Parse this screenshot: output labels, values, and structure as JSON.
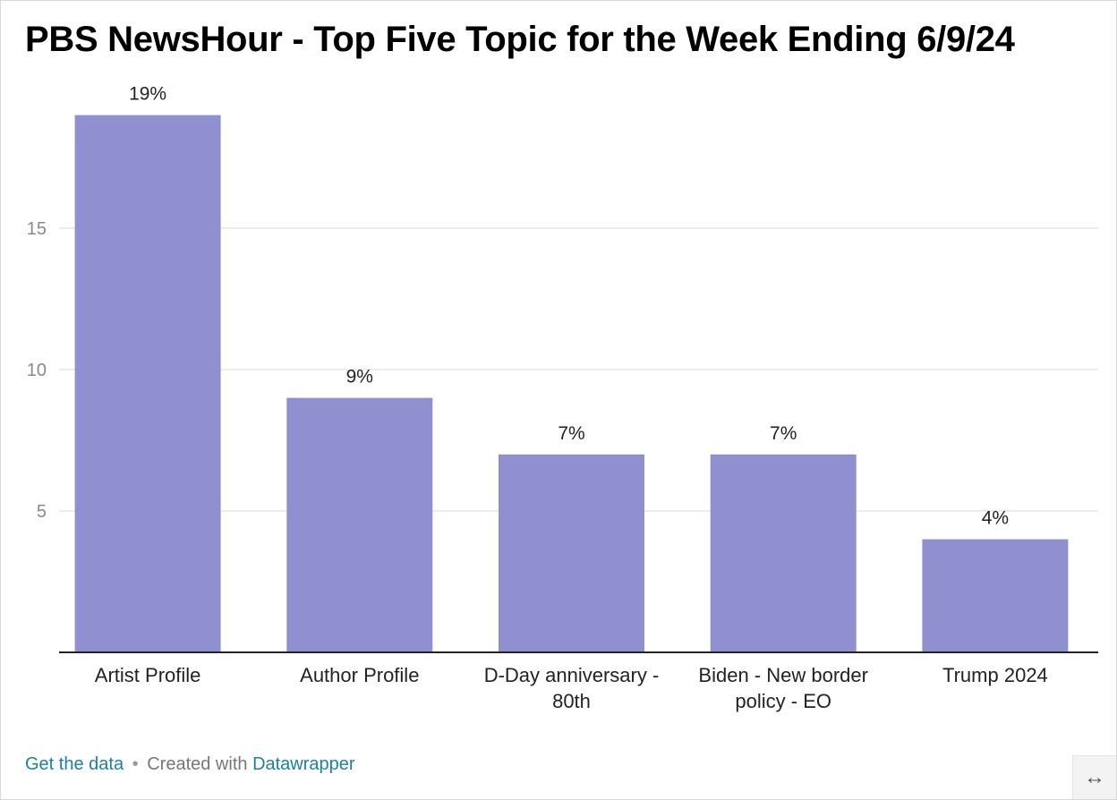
{
  "title": "PBS NewsHour - Top Five Topic for the Week Ending 6/9/24",
  "footer": {
    "get_data": "Get the data",
    "separator": "•",
    "created_with": "Created with",
    "tool": "Datawrapper"
  },
  "expand_icon": "↔",
  "colors": {
    "bar": "#9090d0",
    "grid": "#e6e6e6",
    "axis": "#222222",
    "link": "#1d81a2"
  },
  "chart_data": {
    "type": "bar",
    "categories": [
      [
        "Artist Profile"
      ],
      [
        "Author Profile"
      ],
      [
        "D-Day anniversary -",
        "80th"
      ],
      [
        "Biden - New border",
        "policy - EO"
      ],
      [
        "Trump 2024"
      ]
    ],
    "values": [
      19,
      9,
      7,
      7,
      4
    ],
    "data_labels": [
      "19%",
      "9%",
      "7%",
      "7%",
      "4%"
    ],
    "yticks": [
      5,
      10,
      15
    ],
    "ylim": [
      0,
      19
    ],
    "grid": true
  }
}
